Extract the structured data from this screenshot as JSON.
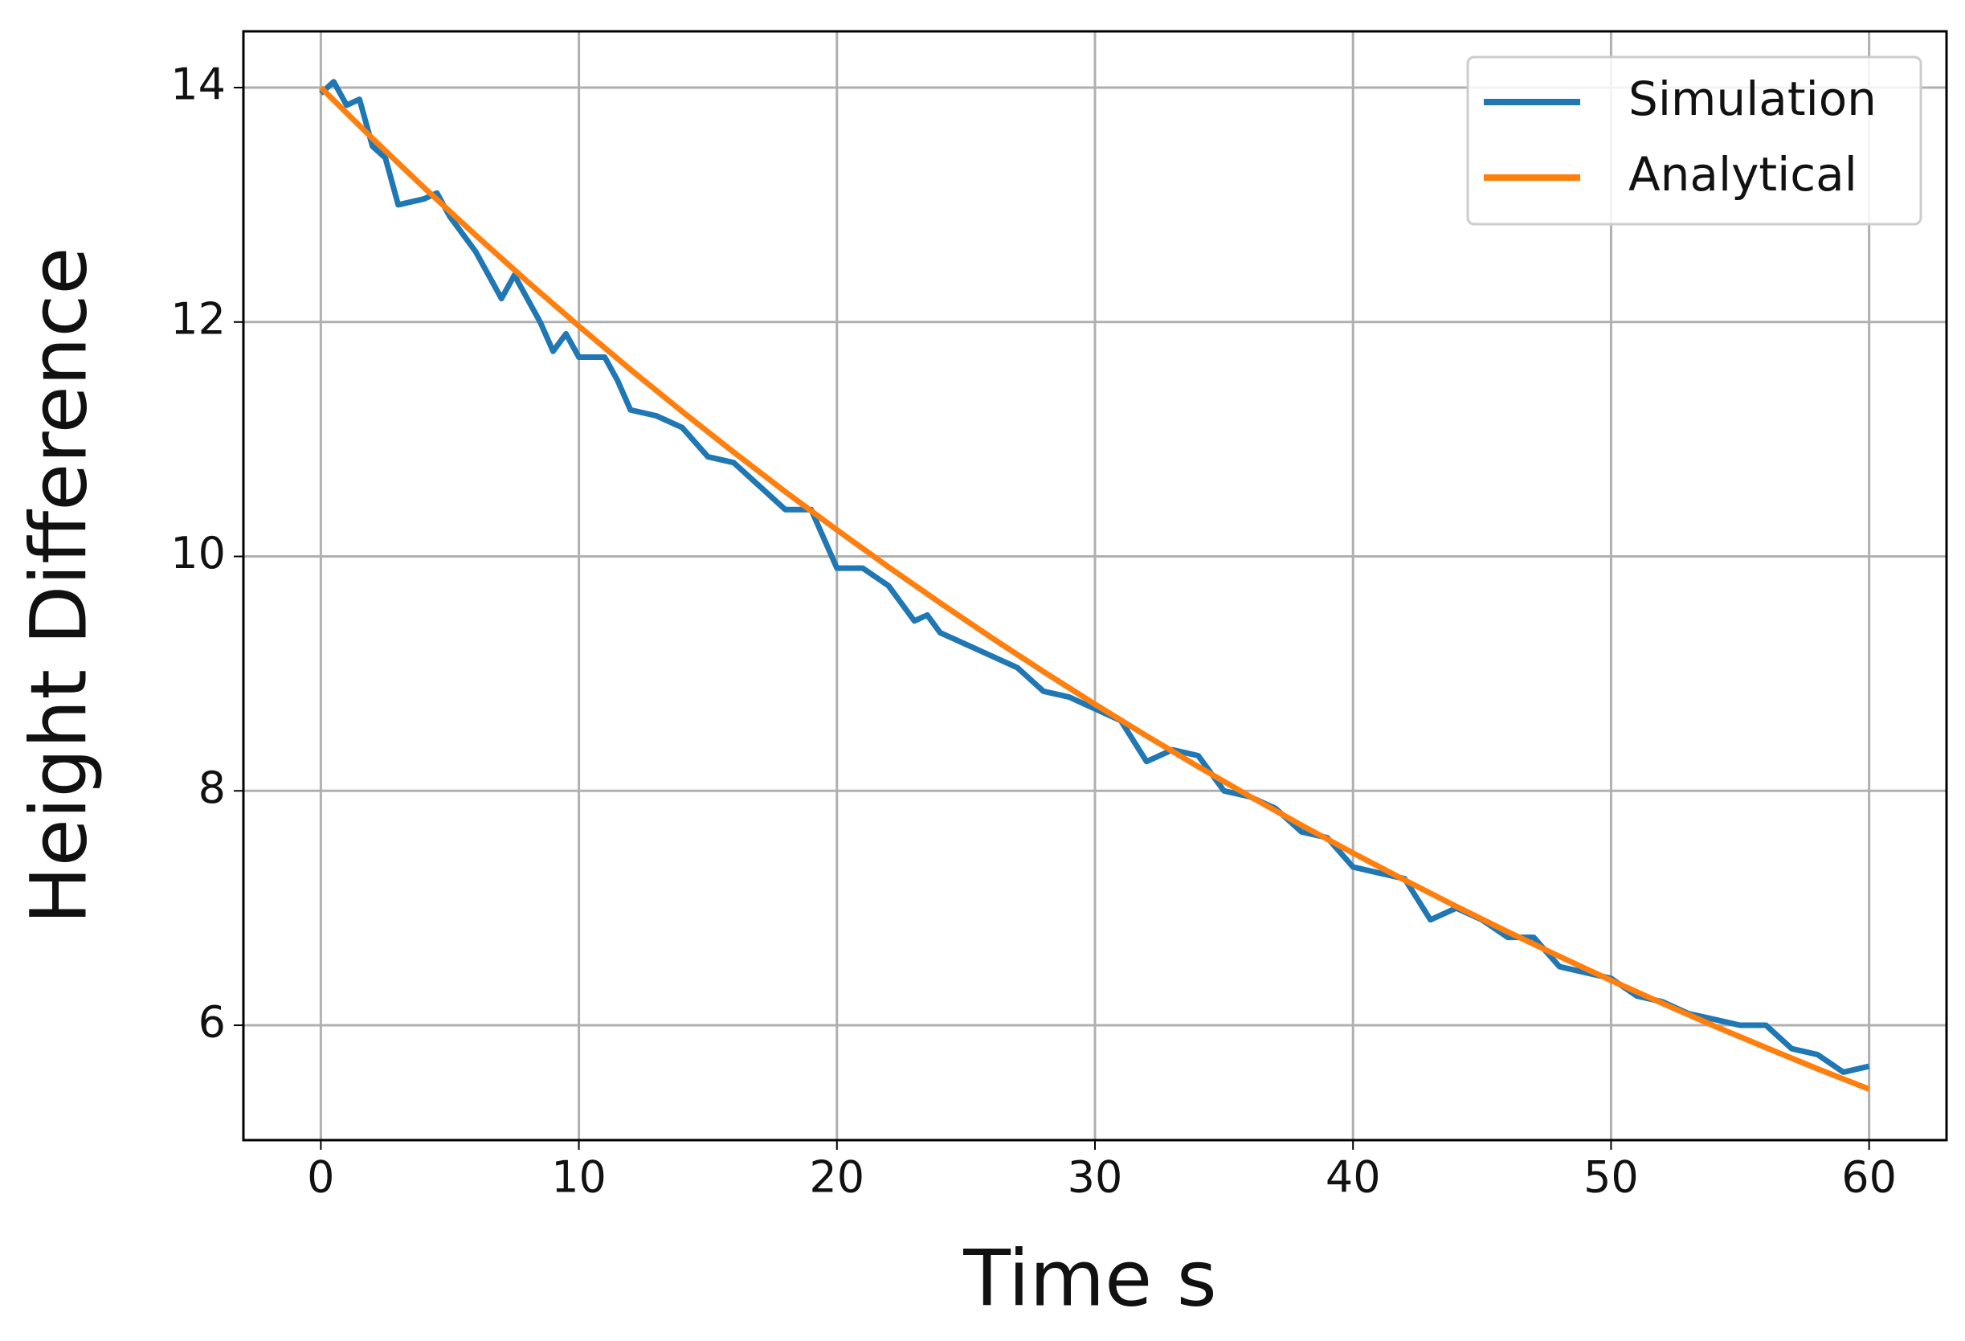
{
  "chart_data": {
    "type": "line",
    "xlabel": "Time s",
    "ylabel": "Height Difference",
    "xlim": [
      -3,
      63
    ],
    "ylim": [
      5.02,
      14.48
    ],
    "xticks": [
      0,
      10,
      20,
      30,
      40,
      50,
      60
    ],
    "yticks": [
      6,
      8,
      10,
      12,
      14
    ],
    "grid": true,
    "legend": "upper right",
    "series": [
      {
        "name": "Simulation",
        "color": "#1f77b4",
        "x": [
          0,
          0.5,
          1,
          1.5,
          2,
          2.5,
          3,
          4,
          4.5,
          5,
          6,
          7,
          7.5,
          8,
          8.5,
          9,
          9.5,
          10,
          11,
          11.5,
          12,
          13,
          14,
          15,
          16,
          17,
          18,
          19,
          20,
          21,
          22,
          23,
          23.5,
          24,
          25,
          26,
          27,
          28,
          29,
          30,
          31,
          32,
          33,
          34,
          35,
          36,
          37,
          38,
          39,
          40,
          41,
          42,
          43,
          44,
          45,
          46,
          47,
          48,
          49,
          50,
          51,
          52,
          53,
          54,
          55,
          56,
          57,
          58,
          59,
          60
        ],
        "values": [
          13.95,
          14.05,
          13.85,
          13.9,
          13.5,
          13.4,
          13.0,
          13.05,
          13.1,
          12.9,
          12.6,
          12.2,
          12.4,
          12.2,
          12.0,
          11.75,
          11.9,
          11.7,
          11.7,
          11.5,
          11.25,
          11.2,
          11.1,
          10.85,
          10.8,
          10.6,
          10.4,
          10.4,
          9.9,
          9.9,
          9.75,
          9.45,
          9.5,
          9.35,
          9.25,
          9.15,
          9.05,
          8.85,
          8.8,
          8.7,
          8.6,
          8.25,
          8.35,
          8.3,
          8.0,
          7.95,
          7.85,
          7.65,
          7.6,
          7.35,
          7.3,
          7.25,
          6.9,
          7.0,
          6.9,
          6.75,
          6.75,
          6.5,
          6.45,
          6.4,
          6.25,
          6.2,
          6.1,
          6.05,
          6.0,
          6.0,
          5.8,
          5.75,
          5.6,
          5.65
        ]
      },
      {
        "name": "Analytical",
        "color": "#ff7f0e",
        "x": [
          0,
          2,
          4,
          6,
          8,
          10,
          12,
          14,
          16,
          18,
          20,
          22,
          24,
          26,
          28,
          30,
          32,
          34,
          36,
          38,
          40,
          42,
          44,
          46,
          48,
          50,
          52,
          54,
          56,
          58,
          60
        ],
        "values": [
          14.0,
          13.567,
          13.147,
          12.741,
          12.347,
          11.965,
          11.595,
          11.237,
          10.889,
          10.552,
          10.226,
          9.91,
          9.603,
          9.306,
          9.018,
          8.739,
          8.469,
          8.207,
          7.953,
          7.707,
          7.469,
          7.238,
          7.014,
          6.797,
          6.587,
          6.383,
          6.186,
          5.994,
          5.809,
          5.629,
          5.455
        ]
      }
    ]
  }
}
